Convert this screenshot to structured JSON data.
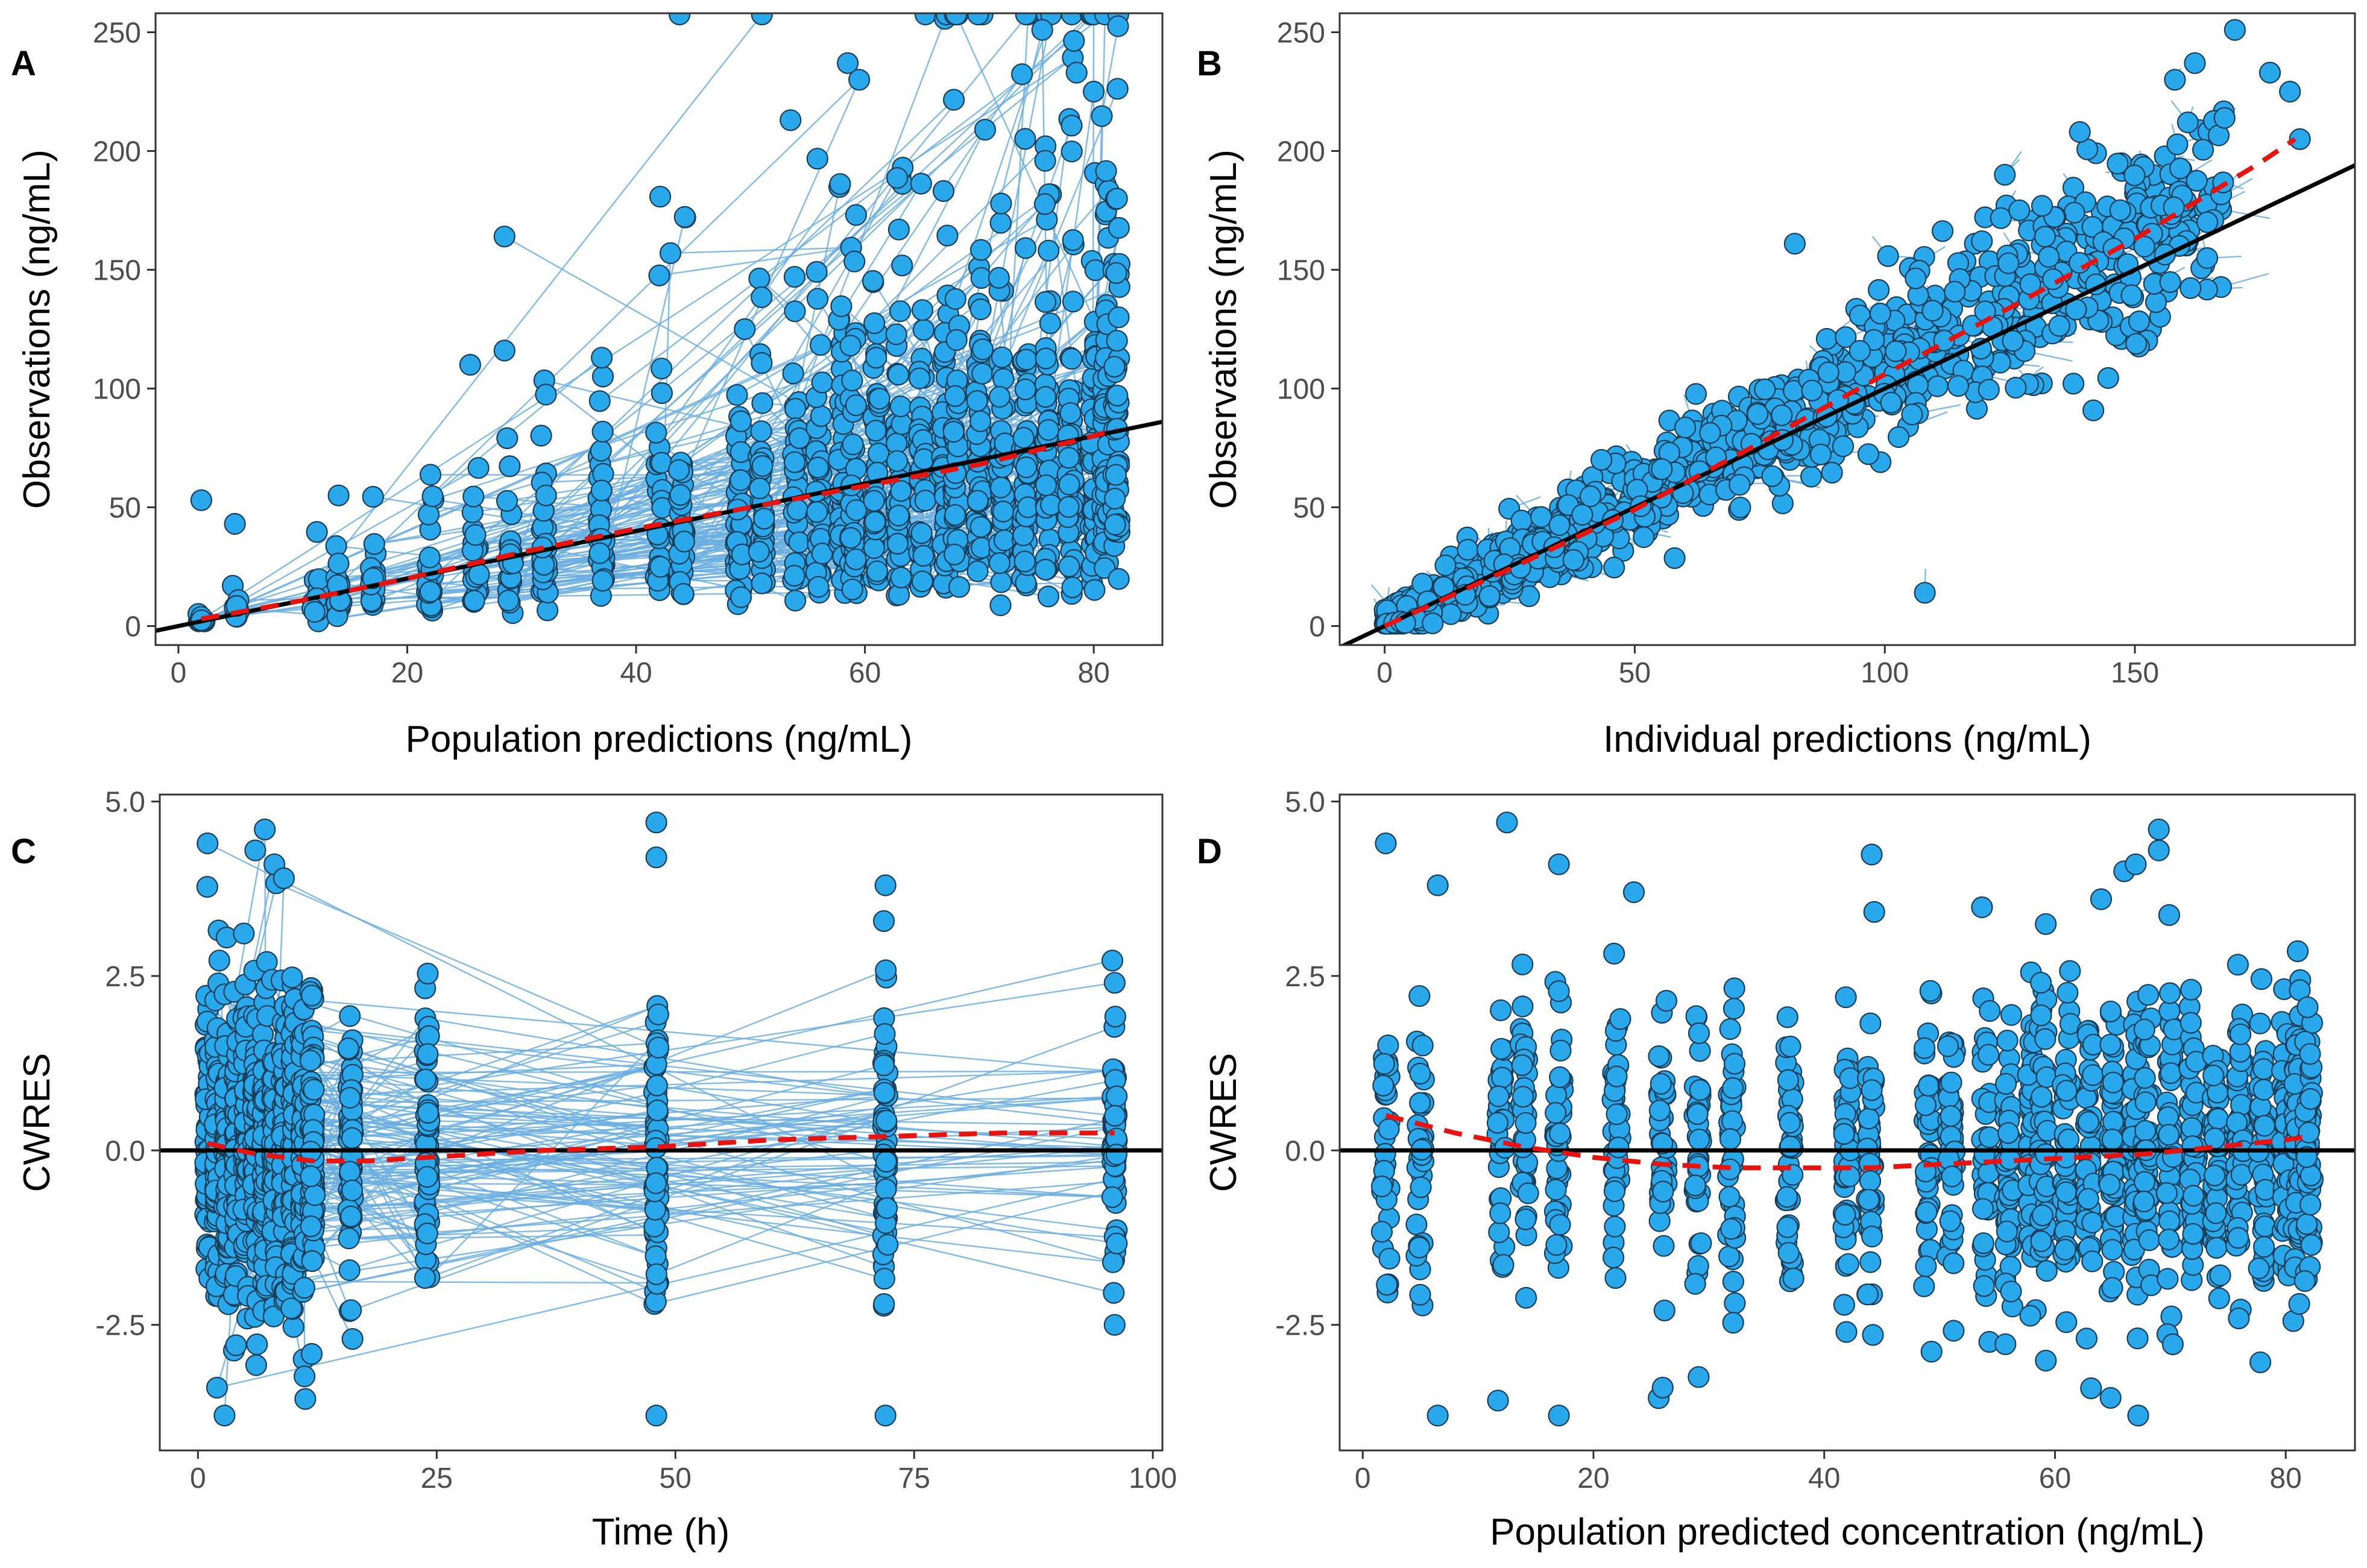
{
  "chart_data": [
    {
      "id": "A",
      "type": "scatter",
      "panel_label": "A",
      "xlabel": "Population predictions (ng/mL)",
      "ylabel": "Observations (ng/mL)",
      "xlim": [
        -2,
        86
      ],
      "ylim": [
        -8,
        258
      ],
      "xticks": [
        0,
        20,
        40,
        60,
        80
      ],
      "yticks": [
        0,
        50,
        100,
        150,
        200,
        250
      ],
      "connected_by_subject": true,
      "reference_line": {
        "kind": "identity",
        "slope": 1,
        "intercept": 0
      },
      "smooth_line": {
        "x": [
          2,
          10,
          20,
          30,
          40,
          50,
          60,
          70,
          80,
          82
        ],
        "y": [
          3,
          10,
          20,
          31,
          41,
          50,
          59,
          68,
          80,
          83
        ]
      },
      "x_levels": [
        2,
        5,
        12,
        14,
        17,
        22,
        26,
        29,
        32,
        37,
        42,
        44,
        49,
        51,
        54,
        56,
        58,
        59,
        61,
        63,
        65,
        67,
        68,
        70,
        72,
        74,
        76,
        78,
        80,
        81,
        82
      ],
      "highlight_points": [
        {
          "x": 28.5,
          "y": 164
        },
        {
          "x": 43,
          "y": 157
        },
        {
          "x": 53.5,
          "y": 213
        },
        {
          "x": 58.5,
          "y": 237
        },
        {
          "x": 59.5,
          "y": 230
        },
        {
          "x": 70.5,
          "y": 209
        },
        {
          "x": 75.5,
          "y": 251
        },
        {
          "x": 78.5,
          "y": 233
        },
        {
          "x": 80,
          "y": 225
        },
        {
          "x": 2,
          "y": 53
        },
        {
          "x": 14,
          "y": 55
        },
        {
          "x": 25.5,
          "y": 110
        },
        {
          "x": 28.5,
          "y": 116
        },
        {
          "x": 37,
          "y": 113
        },
        {
          "x": 49.5,
          "y": 125
        }
      ]
    },
    {
      "id": "B",
      "type": "scatter",
      "panel_label": "B",
      "xlabel": "Individual predictions (ng/mL)",
      "ylabel": "Observations (ng/mL)",
      "xlim": [
        -9,
        194
      ],
      "ylim": [
        -8,
        258
      ],
      "xticks": [
        0,
        50,
        100,
        150
      ],
      "yticks": [
        0,
        50,
        100,
        150,
        200,
        250
      ],
      "connected_by_subject": true,
      "reference_line": {
        "kind": "identity",
        "slope": 1,
        "intercept": 0
      },
      "smooth_line": {
        "x": [
          0,
          25,
          50,
          75,
          100,
          125,
          150,
          175,
          182
        ],
        "y": [
          0,
          24,
          49,
          77,
          106,
          134,
          163,
          195,
          205
        ]
      },
      "highlight_points": [
        {
          "x": 170,
          "y": 251
        },
        {
          "x": 162,
          "y": 237
        },
        {
          "x": 158,
          "y": 230
        },
        {
          "x": 177,
          "y": 233
        },
        {
          "x": 181,
          "y": 225
        },
        {
          "x": 183,
          "y": 205
        },
        {
          "x": 82,
          "y": 161
        },
        {
          "x": 108,
          "y": 14
        },
        {
          "x": 124,
          "y": 190
        },
        {
          "x": 139,
          "y": 208
        }
      ]
    },
    {
      "id": "C",
      "type": "scatter",
      "panel_label": "C",
      "xlabel": "Time (h)",
      "ylabel": "CWRES",
      "xlim": [
        -4,
        101
      ],
      "ylim": [
        -4.3,
        5.1
      ],
      "xticks": [
        0,
        25,
        50,
        75,
        100
      ],
      "ytick_values": [
        -2.5,
        0,
        2.5,
        5
      ],
      "ytick_labels": [
        "-2.5",
        "0.0",
        "2.5",
        "5.0"
      ],
      "connected_by_subject": true,
      "reference_line": {
        "kind": "horizontal",
        "y": 0
      },
      "x_levels": [
        1,
        2,
        3,
        4,
        5,
        6,
        7,
        8,
        9,
        10,
        11,
        12,
        16,
        24,
        48,
        72,
        96
      ],
      "smooth_line": {
        "x": [
          1,
          6,
          12,
          18,
          24,
          36,
          48,
          60,
          72,
          84,
          96
        ],
        "y": [
          0.1,
          -0.05,
          -0.15,
          -0.15,
          -0.1,
          0.0,
          0.05,
          0.15,
          0.2,
          0.25,
          0.25
        ]
      },
      "highlight_points": [
        {
          "x": 1,
          "y": 4.4
        },
        {
          "x": 6,
          "y": 4.3
        },
        {
          "x": 7,
          "y": 4.6
        },
        {
          "x": 8,
          "y": 4.1
        },
        {
          "x": 9,
          "y": 3.9
        },
        {
          "x": 48,
          "y": 4.7
        },
        {
          "x": 48,
          "y": 4.2
        },
        {
          "x": 48,
          "y": -3.8
        },
        {
          "x": 72,
          "y": 3.8
        },
        {
          "x": 72,
          "y": -3.8
        },
        {
          "x": 2,
          "y": -3.4
        },
        {
          "x": 96,
          "y": -2.5
        }
      ]
    },
    {
      "id": "D",
      "type": "scatter",
      "panel_label": "D",
      "xlabel": "Population predicted concentration (ng/mL)",
      "ylabel": "CWRES",
      "xlim": [
        -2,
        86
      ],
      "ylim": [
        -4.3,
        5.1
      ],
      "xticks": [
        0,
        20,
        40,
        60,
        80
      ],
      "ytick_values": [
        -2.5,
        0,
        2.5,
        5
      ],
      "ytick_labels": [
        "-2.5",
        "0.0",
        "2.5",
        "5.0"
      ],
      "connected_by_subject": false,
      "reference_line": {
        "kind": "horizontal",
        "y": 0
      },
      "x_levels": [
        2,
        5,
        12,
        14,
        17,
        22,
        26,
        29,
        32,
        37,
        42,
        44,
        49,
        51,
        54,
        56,
        58,
        59,
        61,
        63,
        65,
        67,
        68,
        70,
        72,
        74,
        76,
        78,
        80,
        81,
        82
      ],
      "smooth_line": {
        "x": [
          2,
          8,
          14,
          20,
          26,
          32,
          38,
          44,
          50,
          56,
          62,
          68,
          74,
          80,
          82
        ],
        "y": [
          0.5,
          0.25,
          0.05,
          -0.1,
          -0.2,
          -0.25,
          -0.25,
          -0.25,
          -0.2,
          -0.15,
          -0.1,
          -0.05,
          0.05,
          0.15,
          0.2
        ]
      },
      "highlight_points": [
        {
          "x": 2,
          "y": 4.4
        },
        {
          "x": 12.5,
          "y": 4.7
        },
        {
          "x": 17,
          "y": 4.1
        },
        {
          "x": 23.5,
          "y": 3.7
        },
        {
          "x": 6.5,
          "y": 3.8
        },
        {
          "x": 66,
          "y": 4.0
        },
        {
          "x": 67,
          "y": 4.1
        },
        {
          "x": 69,
          "y": 4.6
        },
        {
          "x": 69,
          "y": 4.3
        },
        {
          "x": 64,
          "y": 3.6
        },
        {
          "x": 6.5,
          "y": -3.8
        },
        {
          "x": 17,
          "y": -3.8
        },
        {
          "x": 26,
          "y": -3.4
        }
      ]
    }
  ]
}
